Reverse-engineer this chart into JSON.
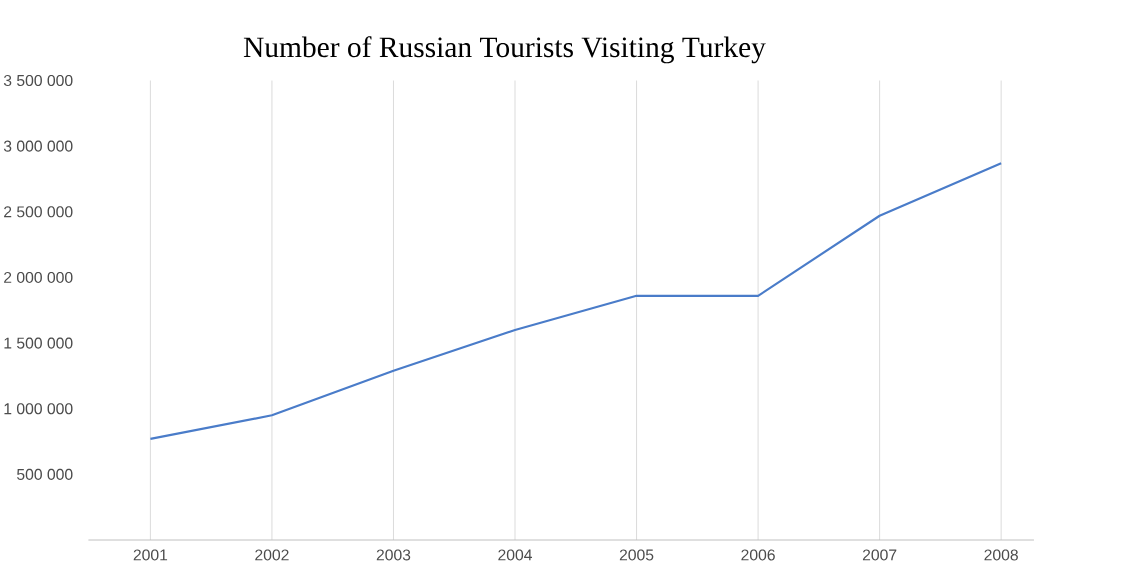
{
  "chart_data": {
    "type": "line",
    "title": "Number of Russian Tourists Visiting Turkey",
    "categories": [
      "2001",
      "2002",
      "2003",
      "2004",
      "2005",
      "2006",
      "2007",
      "2008"
    ],
    "series": [
      {
        "color": "#4a7cc9",
        "values": [
          770000,
          950000,
          1290000,
          1600000,
          1860000,
          1860000,
          2470000,
          2870000
        ]
      }
    ],
    "ylim": [
      0,
      3500000
    ],
    "yticks": [
      {
        "value": 500000,
        "label": "500 000"
      },
      {
        "value": 1000000,
        "label": "1 000 000"
      },
      {
        "value": 1500000,
        "label": "1 500 000"
      },
      {
        "value": 2000000,
        "label": "2 000 000"
      },
      {
        "value": 2500000,
        "label": "2 500 000"
      },
      {
        "value": 3000000,
        "label": "3 000 000"
      },
      {
        "value": 3500000,
        "label": "3 500 000"
      }
    ],
    "grid": "x",
    "marker": "none",
    "line_style": "solid"
  }
}
